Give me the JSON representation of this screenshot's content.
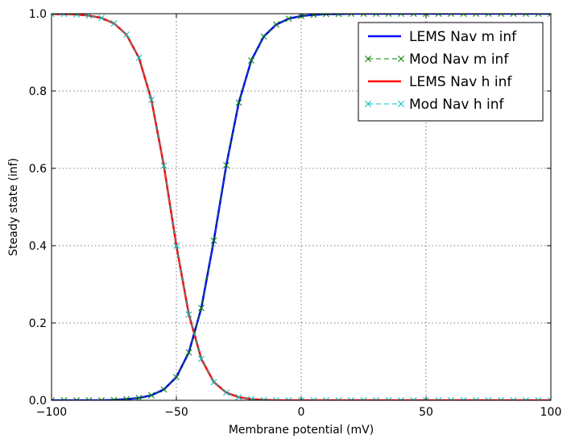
{
  "chart_data": {
    "type": "line",
    "xlabel": "Membrane potential (mV)",
    "ylabel": "Steady state (inf)",
    "xlim": [
      -100,
      100
    ],
    "ylim": [
      0.0,
      1.0
    ],
    "x_ticks": [
      -100,
      -50,
      0,
      50,
      100
    ],
    "x_tick_labels": [
      "−100",
      "−50",
      "0",
      "50",
      "100"
    ],
    "y_ticks": [
      0.0,
      0.2,
      0.4,
      0.6,
      0.8,
      1.0
    ],
    "y_tick_labels": [
      "0.0",
      "0.2",
      "0.4",
      "0.6",
      "0.8",
      "1.0"
    ],
    "grid": true,
    "legend_position": "top-right",
    "x": [
      -100,
      -95,
      -90,
      -85,
      -80,
      -75,
      -70,
      -65,
      -60,
      -55,
      -50,
      -45,
      -40,
      -35,
      -30,
      -25,
      -20,
      -15,
      -10,
      -5,
      0,
      5,
      10,
      15,
      20,
      25,
      30,
      35,
      40,
      45,
      50,
      55,
      60,
      65,
      70,
      75,
      80,
      85,
      90,
      95,
      100
    ],
    "series": [
      {
        "name": "LEMS Nav m inf",
        "style": "line",
        "color": "#0000ff",
        "values": [
          0.0,
          0.0,
          0.0,
          0.0,
          0.0,
          0.001,
          0.003,
          0.006,
          0.013,
          0.028,
          0.06,
          0.124,
          0.239,
          0.413,
          0.608,
          0.77,
          0.879,
          0.941,
          0.972,
          0.987,
          0.994,
          0.997,
          0.999,
          0.999,
          1.0,
          1.0,
          1.0,
          1.0,
          1.0,
          1.0,
          1.0,
          1.0,
          1.0,
          1.0,
          1.0,
          1.0,
          1.0,
          1.0,
          1.0,
          1.0,
          1.0
        ]
      },
      {
        "name": "Mod Nav m inf",
        "style": "dashed-x",
        "color": "#008000",
        "values": [
          0.0,
          0.0,
          0.0,
          0.0,
          0.0,
          0.001,
          0.003,
          0.006,
          0.013,
          0.028,
          0.06,
          0.124,
          0.239,
          0.413,
          0.608,
          0.77,
          0.879,
          0.941,
          0.972,
          0.987,
          0.994,
          0.997,
          0.999,
          0.999,
          1.0,
          1.0,
          1.0,
          1.0,
          1.0,
          1.0,
          1.0,
          1.0,
          1.0,
          1.0,
          1.0,
          1.0,
          1.0,
          1.0,
          1.0,
          1.0,
          1.0
        ]
      },
      {
        "name": "LEMS Nav h inf",
        "style": "line",
        "color": "#ff0000",
        "values": [
          0.999,
          0.999,
          0.998,
          0.995,
          0.989,
          0.975,
          0.946,
          0.886,
          0.777,
          0.607,
          0.4,
          0.222,
          0.107,
          0.047,
          0.02,
          0.008,
          0.003,
          0.001,
          0.0,
          0.0,
          0.0,
          0.0,
          0.0,
          0.0,
          0.0,
          0.0,
          0.0,
          0.0,
          0.0,
          0.0,
          0.0,
          0.0,
          0.0,
          0.0,
          0.0,
          0.0,
          0.0,
          0.0,
          0.0,
          0.0,
          0.0
        ]
      },
      {
        "name": "Mod Nav h inf",
        "style": "dashed-x",
        "color": "#00bfbf",
        "values": [
          0.999,
          0.999,
          0.998,
          0.995,
          0.989,
          0.975,
          0.946,
          0.886,
          0.777,
          0.607,
          0.4,
          0.222,
          0.107,
          0.047,
          0.02,
          0.008,
          0.003,
          0.001,
          0.0,
          0.0,
          0.0,
          0.0,
          0.0,
          0.0,
          0.0,
          0.0,
          0.0,
          0.0,
          0.0,
          0.0,
          0.0,
          0.0,
          0.0,
          0.0,
          0.0,
          0.0,
          0.0,
          0.0,
          0.0,
          0.0,
          0.0
        ]
      }
    ]
  }
}
